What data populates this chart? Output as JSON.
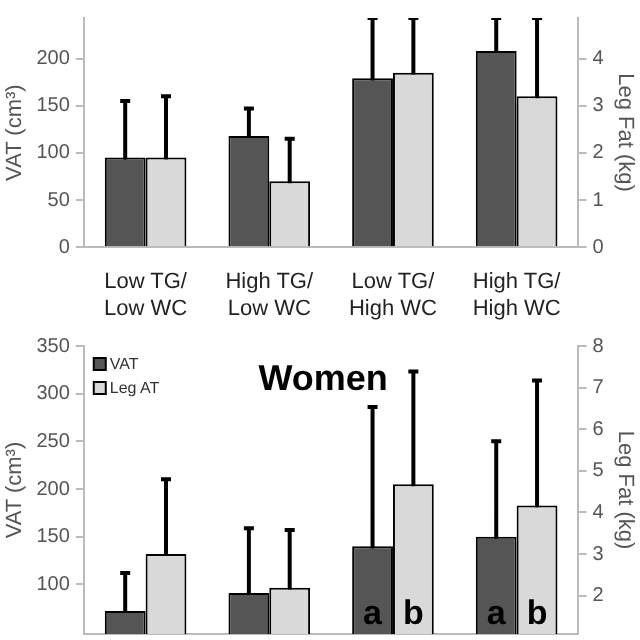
{
  "chart_data": [
    {
      "type": "bar",
      "categories": [
        "Low TG/ Low WC",
        "High TG/ Low WC",
        "Low TG/ High WC",
        "High TG/ High WC"
      ],
      "ylabel": "VAT (cm³)",
      "y2label": "Leg Fat (kg)",
      "ylim": [
        0,
        243
      ],
      "yticks": [
        0,
        50,
        100,
        150,
        200
      ],
      "y2lim": [
        0,
        4.86
      ],
      "y2ticks": [
        0,
        1,
        2,
        3,
        4
      ],
      "grid": false,
      "legend": false,
      "series": [
        {
          "color": "#555555",
          "values": [
            95,
            118,
            179,
            208
          ],
          "errors": [
            60,
            29,
            64,
            35
          ]
        },
        {
          "color": "#d9d9d9",
          "axis": "y2",
          "values": [
            1.9,
            1.4,
            3.7,
            3.2
          ],
          "errors": [
            1.3,
            0.9,
            1.16,
            1.66
          ]
        }
      ]
    },
    {
      "type": "bar",
      "title": "Women",
      "categories": [
        null,
        null,
        null,
        null
      ],
      "ylabel": "VAT (cm³)",
      "y2label": "Leg Fat (kg)",
      "ylim": [
        48,
        350
      ],
      "yticks": [
        100,
        150,
        200,
        250,
        300,
        350
      ],
      "y2lim": [
        1.08,
        8
      ],
      "y2ticks": [
        2,
        3,
        4,
        5,
        6,
        7,
        8
      ],
      "grid": false,
      "legend": "top left",
      "series": [
        {
          "name": "VAT",
          "color": "#555555",
          "values": [
            72,
            91,
            140,
            150
          ],
          "errors": [
            40,
            68,
            146,
            100
          ],
          "value_labels": [
            null,
            null,
            "a",
            "a"
          ]
        },
        {
          "name": "Leg AT",
          "color": "#d9d9d9",
          "axis": "y2",
          "values": [
            3.0,
            2.19,
            4.68,
            4.17
          ],
          "errors": [
            1.8,
            1.39,
            2.71,
            3.0
          ],
          "value_labels": [
            null,
            null,
            "b",
            "b"
          ]
        }
      ]
    }
  ]
}
